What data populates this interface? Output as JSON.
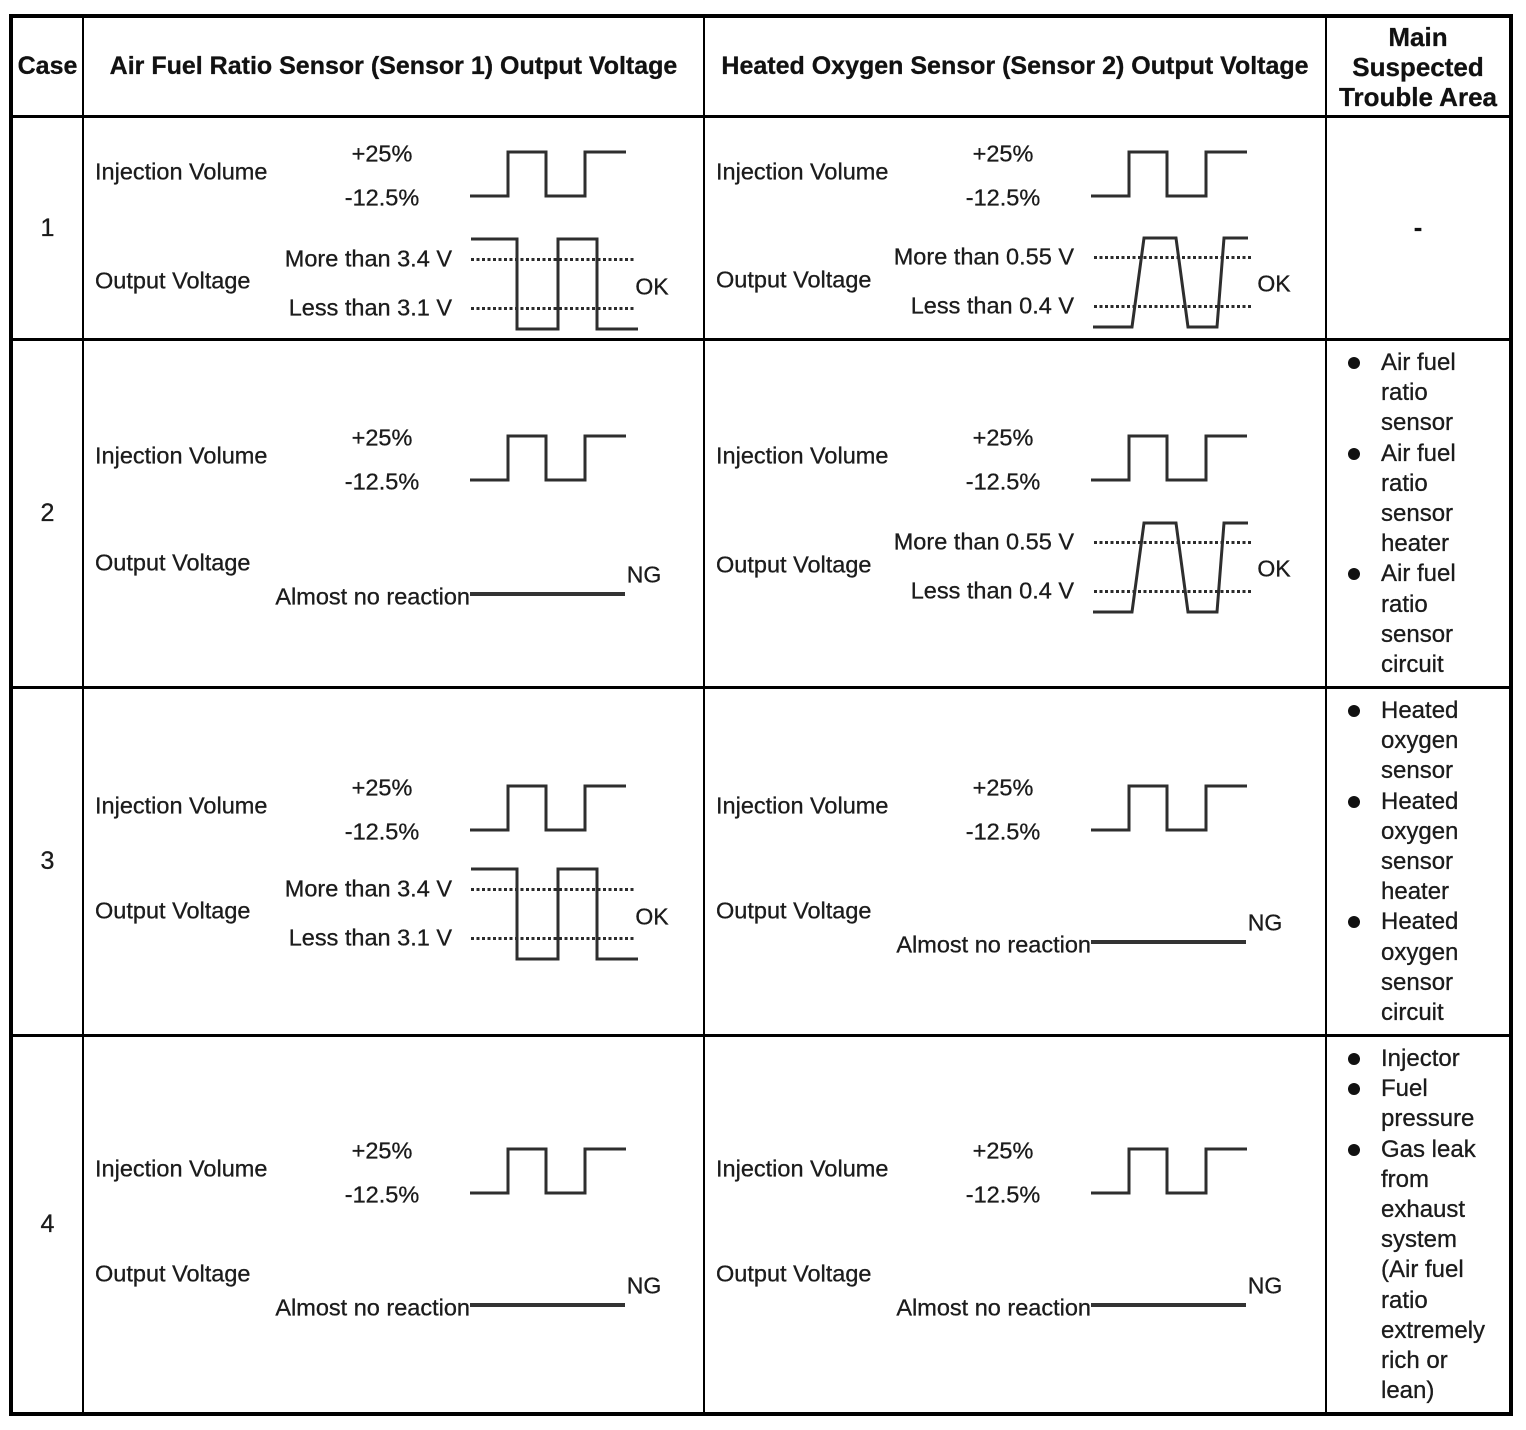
{
  "header": {
    "case": "Case",
    "sensor1": "Air Fuel Ratio Sensor (Sensor 1) Output Voltage",
    "sensor2": "Heated Oxygen Sensor (Sensor 2) Output Voltage",
    "trouble": "Main Suspected Trouble Area"
  },
  "labels": {
    "injection_volume": "Injection Volume",
    "output_voltage": "Output Voltage",
    "injection_high": "+25%",
    "injection_low": "-12.5%"
  },
  "cases": [
    {
      "case": "1",
      "sensor1": {
        "result": "OK",
        "wave": "square",
        "upper": "More than 3.4 V",
        "lower": "Less than 3.1 V"
      },
      "sensor2": {
        "result": "OK",
        "wave": "trapezoid",
        "upper": "More than 0.55 V",
        "lower": "Less than 0.4 V"
      },
      "trouble": {
        "text": "-"
      }
    },
    {
      "case": "2",
      "sensor1": {
        "result": "NG",
        "wave": "flat",
        "note": "Almost no reaction"
      },
      "sensor2": {
        "result": "OK",
        "wave": "trapezoid",
        "upper": "More than 0.55 V",
        "lower": "Less than 0.4 V"
      },
      "trouble": {
        "items": [
          "Air fuel ratio sensor",
          "Air fuel ratio sensor heater",
          "Air fuel ratio sensor circuit"
        ]
      }
    },
    {
      "case": "3",
      "sensor1": {
        "result": "OK",
        "wave": "square",
        "upper": "More than 3.4 V",
        "lower": "Less than 3.1 V"
      },
      "sensor2": {
        "result": "NG",
        "wave": "flat",
        "note": "Almost no reaction"
      },
      "trouble": {
        "items": [
          "Heated oxygen sensor",
          "Heated oxygen sensor heater",
          "Heated oxygen sensor circuit"
        ]
      }
    },
    {
      "case": "4",
      "sensor1": {
        "result": "NG",
        "wave": "flat",
        "note": "Almost no reaction"
      },
      "sensor2": {
        "result": "NG",
        "wave": "flat",
        "note": "Almost no reaction"
      },
      "trouble": {
        "items": [
          "Injector",
          "Fuel pressure",
          "Gas leak from exhaust system (Air fuel ratio extremely rich or lean)"
        ]
      }
    }
  ]
}
